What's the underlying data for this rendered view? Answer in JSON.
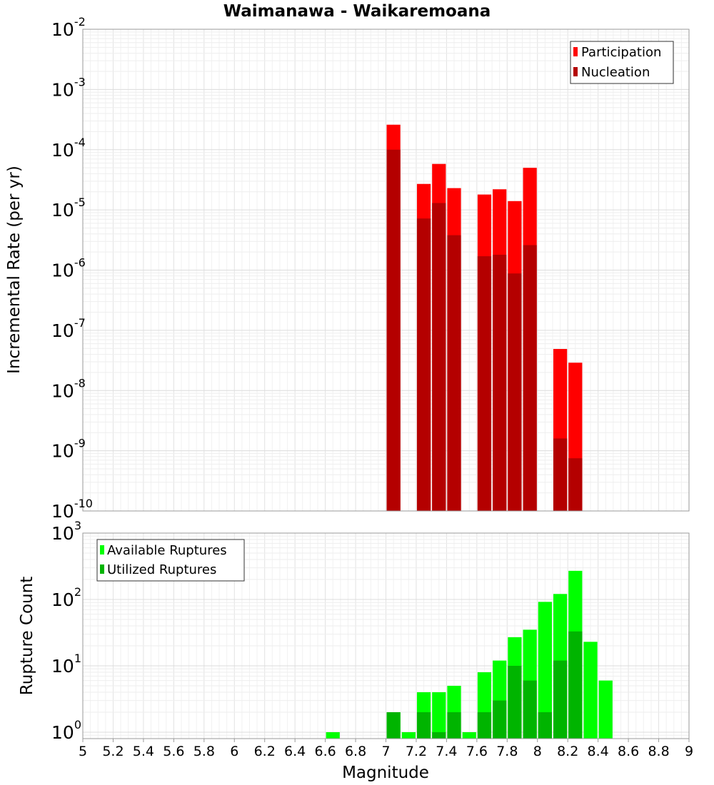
{
  "chart_data": {
    "title": "Waimanawa - Waikaremoana",
    "xlabel": "Magnitude",
    "xlim": [
      5,
      9
    ],
    "xticks": [
      "5",
      "5.2",
      "5.4",
      "5.6",
      "5.8",
      "6",
      "6.2",
      "6.4",
      "6.6",
      "6.8",
      "7",
      "7.2",
      "7.4",
      "7.6",
      "7.8",
      "8",
      "8.2",
      "8.4",
      "8.6",
      "8.8",
      "9"
    ],
    "bin_width": 0.1,
    "top": {
      "type": "bar",
      "ylabel": "Incremental Rate (per yr)",
      "yscale": "log",
      "ylim_exp": [
        -10,
        -2
      ],
      "ytick_exponents": [
        "-2",
        "-3",
        "-4",
        "-5",
        "-6",
        "-7",
        "-8",
        "-9",
        "-10"
      ],
      "legend": [
        {
          "name": "Participation",
          "color": "#ff0000"
        },
        {
          "name": "Nucleation",
          "color": "#b40000"
        }
      ],
      "series": [
        {
          "name": "Participation",
          "color": "#ff0000",
          "x": [
            7.05,
            7.25,
            7.35,
            7.45,
            7.65,
            7.75,
            7.85,
            7.95,
            8.15,
            8.25
          ],
          "values": [
            0.00026,
            2.7e-05,
            5.8e-05,
            2.3e-05,
            1.8e-05,
            2.2e-05,
            1.4e-05,
            5e-05,
            4.9e-08,
            2.9e-08
          ]
        },
        {
          "name": "Nucleation",
          "color": "#b40000",
          "x": [
            7.05,
            7.25,
            7.35,
            7.45,
            7.65,
            7.75,
            7.85,
            7.95,
            8.15,
            8.25
          ],
          "values": [
            0.0001,
            7.2e-06,
            1.3e-05,
            3.8e-06,
            1.7e-06,
            1.8e-06,
            8.8e-07,
            2.6e-06,
            1.6e-09,
            7.5e-10
          ]
        }
      ]
    },
    "bottom": {
      "type": "bar",
      "ylabel": "Rupture Count",
      "yscale": "log",
      "ylim": [
        0.8,
        1000
      ],
      "ytick_exponents": [
        "3",
        "2",
        "1",
        "0"
      ],
      "legend": [
        {
          "name": "Available Ruptures",
          "color": "#00ff00"
        },
        {
          "name": "Utilized Ruptures",
          "color": "#00b400"
        }
      ],
      "series": [
        {
          "name": "Available Ruptures",
          "color": "#00ff00",
          "x": [
            6.65,
            7.05,
            7.15,
            7.25,
            7.35,
            7.45,
            7.55,
            7.65,
            7.75,
            7.85,
            7.95,
            8.05,
            8.15,
            8.25,
            8.35,
            8.45
          ],
          "values": [
            1,
            2,
            1,
            4,
            4,
            5,
            1,
            8,
            12,
            27,
            35,
            92,
            121,
            270,
            23,
            6
          ]
        },
        {
          "name": "Utilized Ruptures",
          "color": "#00b400",
          "x": [
            7.05,
            7.25,
            7.35,
            7.45,
            7.65,
            7.75,
            7.85,
            7.95,
            8.05,
            8.15,
            8.25
          ],
          "values": [
            2,
            2,
            1,
            2,
            2,
            3,
            10,
            6,
            2,
            12,
            33
          ]
        }
      ]
    }
  }
}
